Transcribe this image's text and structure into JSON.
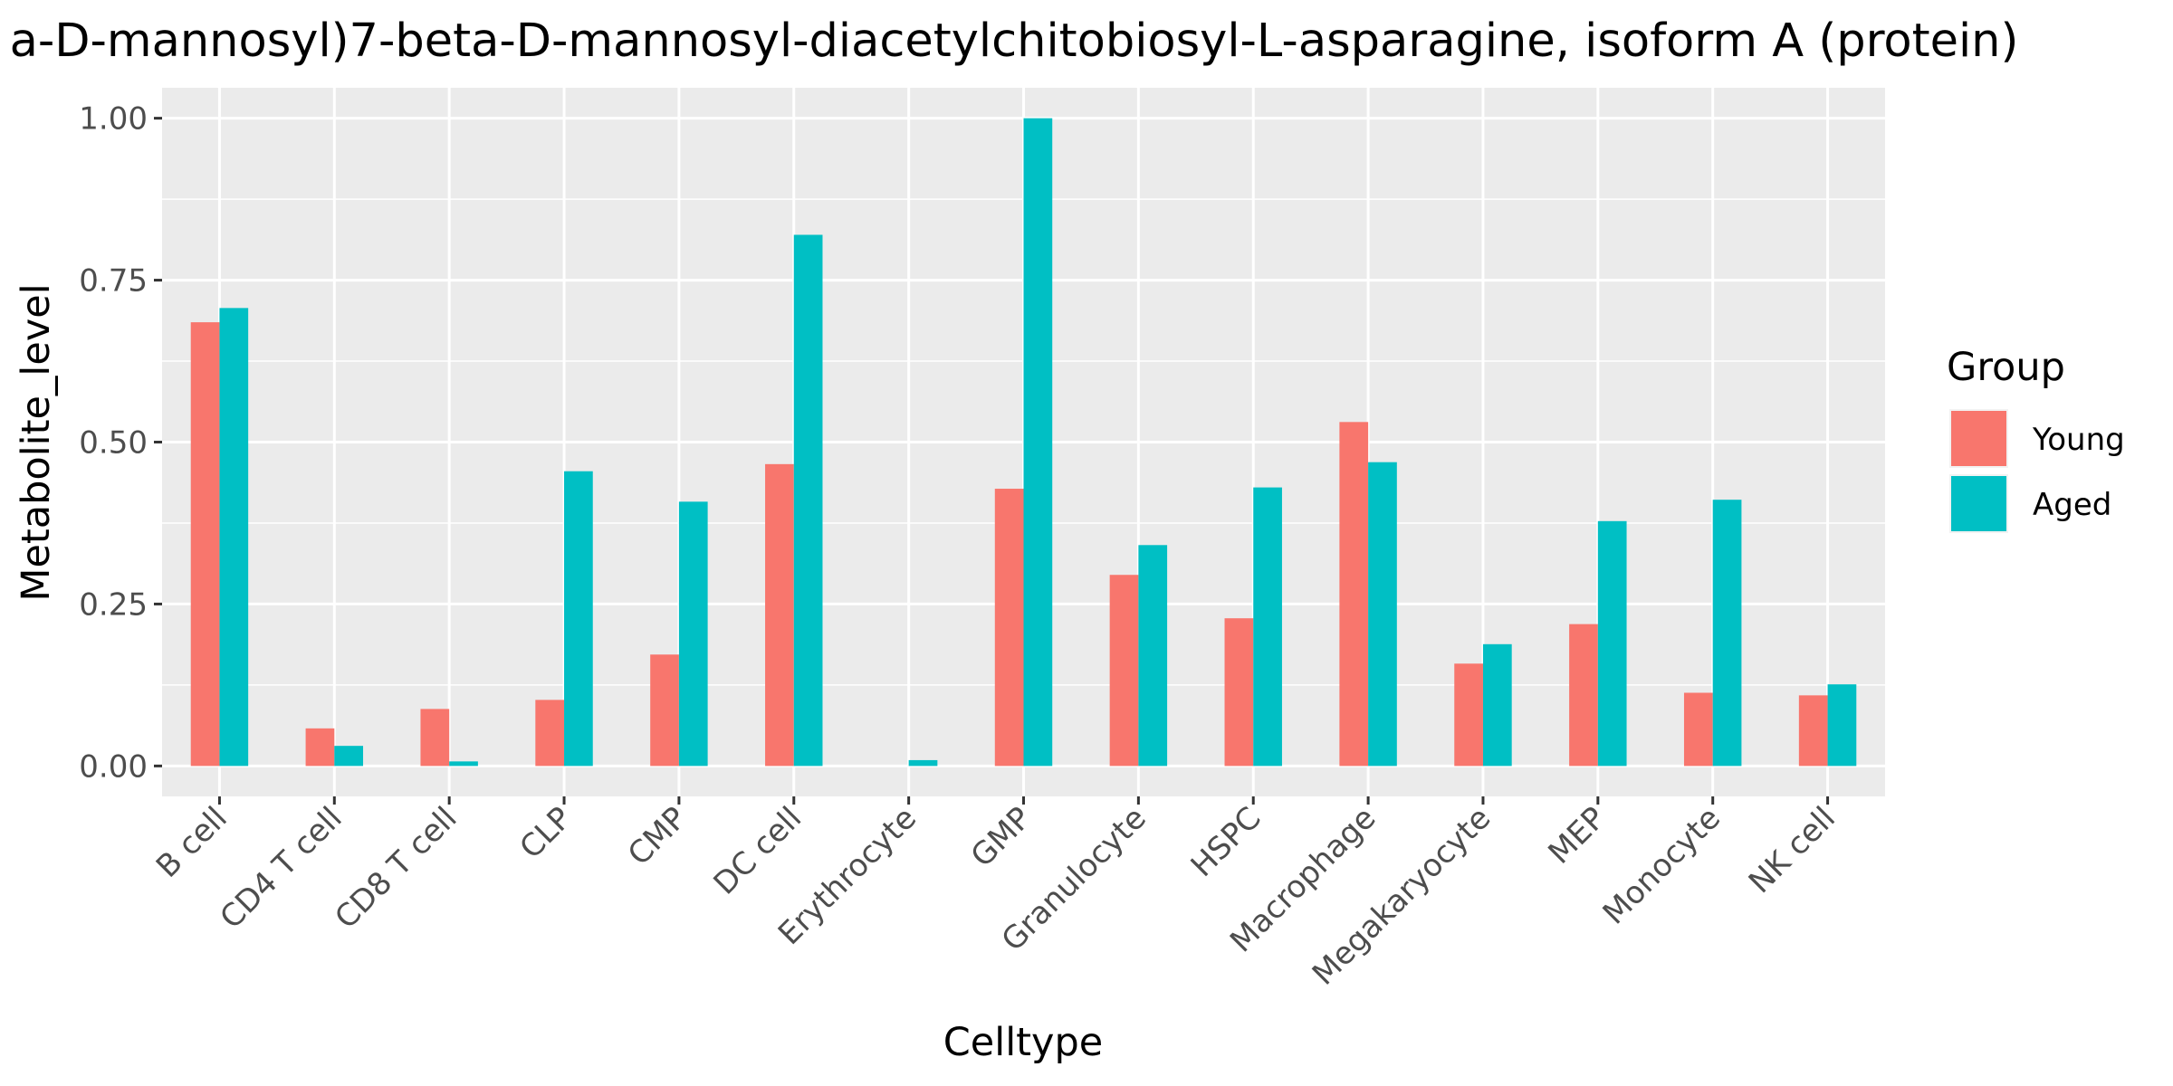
{
  "chart_data": {
    "type": "bar",
    "title": "a-D-mannosyl)7-beta-D-mannosyl-diacetylchitobiosyl-L-asparagine, isoform A (protein)",
    "xlabel": "Celltype",
    "ylabel": "Metabolite_level",
    "ylim": [
      -0.047,
      1.047
    ],
    "yticks": [
      0.0,
      0.25,
      0.5,
      0.75,
      1.0
    ],
    "ytick_labels": [
      "0.00",
      "0.25",
      "0.50",
      "0.75",
      "1.00"
    ],
    "categories": [
      "B cell",
      "CD4 T cell",
      "CD8 T cell",
      "CLP",
      "CMP",
      "DC cell",
      "Erythrocyte",
      "GMP",
      "Granulocyte",
      "HSPC",
      "Macrophage",
      "Megakaryocyte",
      "MEP",
      "Monocyte",
      "NK cell"
    ],
    "series": [
      {
        "name": "Young",
        "color": "#F8766D",
        "values": [
          0.685,
          0.058,
          0.088,
          0.102,
          0.172,
          0.466,
          0.0,
          0.428,
          0.295,
          0.228,
          0.531,
          0.158,
          0.219,
          0.113,
          0.109
        ]
      },
      {
        "name": "Aged",
        "color": "#00BFC4",
        "values": [
          0.707,
          0.031,
          0.007,
          0.455,
          0.408,
          0.82,
          0.009,
          1.0,
          0.341,
          0.43,
          0.469,
          0.188,
          0.378,
          0.411,
          0.126
        ]
      }
    ],
    "legend": {
      "title": "Group",
      "position": "right"
    },
    "grid": true,
    "panel_background": "#EBEBEB",
    "grid_color": "#FFFFFF"
  }
}
